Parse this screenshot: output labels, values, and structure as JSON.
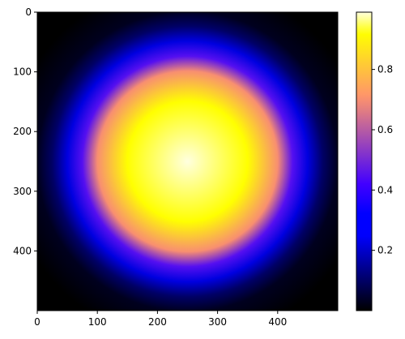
{
  "chart_data": {
    "type": "heatmap",
    "title": "",
    "xlabel": "",
    "ylabel": "",
    "image_size": [
      500,
      500
    ],
    "xlim": [
      0,
      500
    ],
    "ylim": [
      500,
      0
    ],
    "y_inverted": true,
    "grid": false,
    "colormap": "gnuplot2",
    "field": "smooth radial peak: 1 at centre (250, 250), ~0 at corners",
    "center": [
      250,
      250
    ],
    "x_ticks": [
      {
        "value": 0,
        "label": "0"
      },
      {
        "value": 100,
        "label": "100"
      },
      {
        "value": 200,
        "label": "200"
      },
      {
        "value": 300,
        "label": "300"
      },
      {
        "value": 400,
        "label": "400"
      }
    ],
    "y_ticks": [
      {
        "value": 0,
        "label": "0"
      },
      {
        "value": 100,
        "label": "100"
      },
      {
        "value": 200,
        "label": "200"
      },
      {
        "value": 300,
        "label": "300"
      },
      {
        "value": 400,
        "label": "400"
      }
    ],
    "colorbar": {
      "range": [
        0.0,
        0.99
      ],
      "ticks": [
        {
          "value": 0.2,
          "label": "0.2"
        },
        {
          "value": 0.4,
          "label": "0.4"
        },
        {
          "value": 0.6,
          "label": "0.6"
        },
        {
          "value": 0.8,
          "label": "0.8"
        }
      ],
      "placement": "right"
    },
    "profile_from_center": [
      {
        "distance": 0,
        "value": 0.99
      },
      {
        "distance": 100,
        "value": 0.92
      },
      {
        "distance": 150,
        "value": 0.7
      },
      {
        "distance": 175,
        "value": 0.45
      },
      {
        "distance": 200,
        "value": 0.22
      },
      {
        "distance": 225,
        "value": 0.1
      },
      {
        "distance": 250,
        "value": 0.03
      },
      {
        "distance": 300,
        "value": 0.0
      },
      {
        "distance": 360,
        "value": 0.0
      }
    ]
  }
}
